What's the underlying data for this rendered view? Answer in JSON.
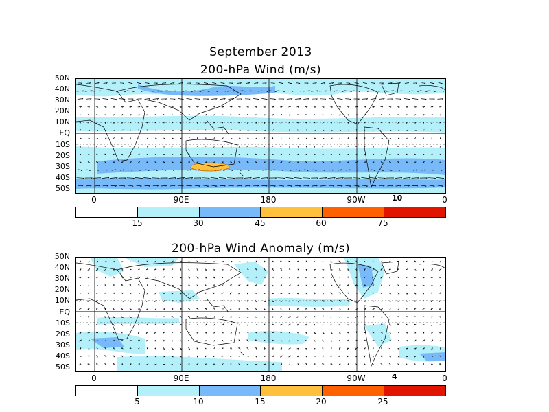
{
  "header": {
    "month": "September 2013"
  },
  "panels": [
    {
      "title": "200-hPa Wind (m/s)",
      "ref_vector": "10"
    },
    {
      "title": "200-hPa Wind Anomaly (m/s)",
      "ref_vector": "4"
    }
  ],
  "lat_labels": [
    "50N",
    "40N",
    "30N",
    "20N",
    "10N",
    "EQ",
    "10S",
    "20S",
    "30S",
    "40S",
    "50S"
  ],
  "lon_labels": [
    "0",
    "90E",
    "180",
    "90W",
    "0"
  ],
  "colorbars": [
    {
      "ticks": [
        "15",
        "30",
        "45",
        "60",
        "75"
      ],
      "colors": [
        "#ffffff",
        "#b4f0fa",
        "#78b9fa",
        "#ffc03c",
        "#ff6000",
        "#e11400"
      ]
    },
    {
      "ticks": [
        "5",
        "10",
        "15",
        "20",
        "25"
      ],
      "colors": [
        "#ffffff",
        "#b4f0fa",
        "#78b9fa",
        "#ffc03c",
        "#ff6000",
        "#e11400"
      ]
    }
  ],
  "colors": {
    "light_blue": "#b4f0fa",
    "mid_blue": "#78b9fa",
    "orange": "#ffc03c"
  }
}
